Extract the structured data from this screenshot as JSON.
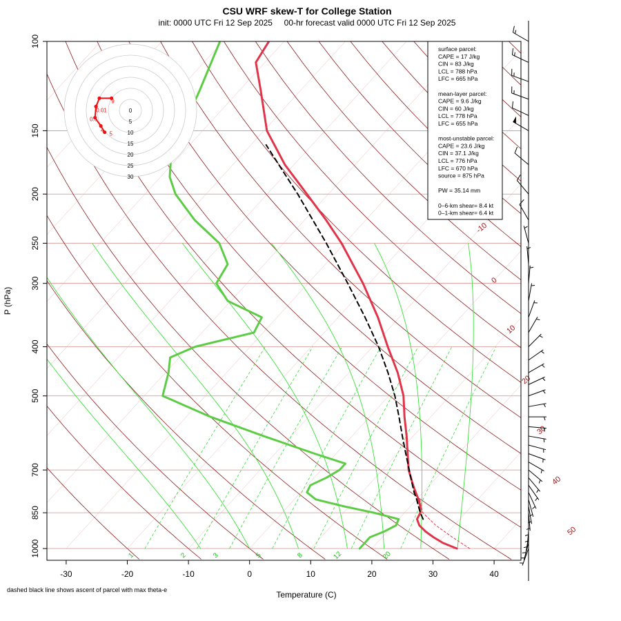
{
  "title": "CSU WRF skew-T for College Station",
  "subtitle": "init: 0000 UTC Fri 12 Sep 2025     00-hr forecast valid 0000 UTC Fri 12 Sep 2025",
  "footnote": "dashed black line shows ascent of parcel with max theta-e",
  "colors": {
    "temperature": "#e0344a",
    "dewpoint": "#5ccc44",
    "parcel": "#000000",
    "isotherm": "#8b1a1a",
    "mixing_ratio": "#33dd33",
    "isobar": "#d88c8c",
    "hodograph": "#ee1111"
  },
  "stats": {
    "lines": [
      "surface parcel:",
      "CAPE = 17 J/kg",
      "CIN = 83 J/kg",
      "LCL = 788 hPa",
      "LFC = 665 hPa",
      "",
      "mean-layer parcel:",
      "CAPE = 9.6 J/kg",
      "CIN = 60 J/kg",
      "LCL = 778 hPa",
      "LFC = 655 hPa",
      "",
      "most-unstable parcel:",
      "CAPE = 23.6 J/kg",
      "CIN = 37.1 J/kg",
      "LCL = 776 hPa",
      "LFC = 670 hPa",
      "source = 875 hPa",
      "",
      "PW =  35.14 mm",
      "",
      "0–6-km shear= 8.4 kt",
      "0–1-km shear= 6.4 kt"
    ]
  },
  "chart_data": {
    "type": "skew-t",
    "xlabel": "Temperature (C)",
    "ylabel": "P (hPa)",
    "x_ticks": [
      "-30",
      "-20",
      "-10",
      "0",
      "10",
      "20",
      "30",
      "40"
    ],
    "pressure_ticks": [
      "100",
      "150",
      "200",
      "250",
      "300",
      "400",
      "500",
      "700",
      "850",
      "1000"
    ],
    "isotherm_labels": [
      "-10",
      "0",
      "10",
      "20",
      "30",
      "40",
      "50"
    ],
    "mixing_ratio_labels": [
      "1",
      "2",
      "3",
      "5",
      "8",
      "12",
      "20"
    ],
    "series": [
      {
        "points": [
          [
            1000,
            33.9
          ],
          [
            975,
            30.8
          ],
          [
            950,
            28.4
          ],
          [
            925,
            26.2
          ],
          [
            900,
            24.3
          ],
          [
            875,
            23.0
          ],
          [
            850,
            22.6
          ],
          [
            825,
            21.6
          ],
          [
            800,
            20.3
          ],
          [
            775,
            18.8
          ],
          [
            750,
            17.3
          ],
          [
            700,
            14.3
          ],
          [
            650,
            11.7
          ],
          [
            600,
            8.9
          ],
          [
            550,
            5.7
          ],
          [
            500,
            2.4
          ],
          [
            450,
            -2.0
          ],
          [
            400,
            -7.5
          ],
          [
            350,
            -13.5
          ],
          [
            300,
            -21.0
          ],
          [
            250,
            -30.5
          ],
          [
            225,
            -36.5
          ],
          [
            200,
            -43.5
          ],
          [
            175,
            -51.5
          ],
          [
            150,
            -59.5
          ],
          [
            125,
            -66.5
          ],
          [
            110,
            -71.5
          ],
          [
            100,
            -72.5
          ]
        ]
      },
      {
        "points": [
          [
            1000,
            18.0
          ],
          [
            950,
            18.0
          ],
          [
            925,
            19.5
          ],
          [
            900,
            20.5
          ],
          [
            875,
            20.0
          ],
          [
            850,
            15.0
          ],
          [
            825,
            9.0
          ],
          [
            800,
            3.5
          ],
          [
            775,
            1.0
          ],
          [
            750,
            0.5
          ],
          [
            725,
            2.0
          ],
          [
            700,
            3.0
          ],
          [
            680,
            3.0
          ],
          [
            650,
            -3.5
          ],
          [
            600,
            -14.5
          ],
          [
            550,
            -26.0
          ],
          [
            500,
            -37.0
          ],
          [
            450,
            -39.5
          ],
          [
            420,
            -41.5
          ],
          [
            400,
            -39.0
          ],
          [
            375,
            -31.5
          ],
          [
            350,
            -32.5
          ],
          [
            325,
            -40.5
          ],
          [
            300,
            -45.0
          ],
          [
            275,
            -46.0
          ],
          [
            250,
            -50.5
          ],
          [
            225,
            -58.0
          ],
          [
            200,
            -65.0
          ],
          [
            185,
            -68.5
          ],
          [
            165,
            -72.0
          ],
          [
            145,
            -74.0
          ],
          [
            125,
            -76.5
          ],
          [
            100,
            -80.5
          ]
        ]
      },
      {
        "style": "dashed",
        "points": [
          [
            875,
            24.0
          ],
          [
            850,
            22.6
          ],
          [
            825,
            21.3
          ],
          [
            800,
            20.0
          ],
          [
            776,
            18.6
          ],
          [
            750,
            17.2
          ],
          [
            700,
            14.4
          ],
          [
            650,
            11.4
          ],
          [
            600,
            8.2
          ],
          [
            550,
            4.8
          ],
          [
            500,
            1.0
          ],
          [
            450,
            -3.6
          ],
          [
            400,
            -9.0
          ],
          [
            350,
            -15.6
          ],
          [
            300,
            -23.5
          ],
          [
            250,
            -33.0
          ],
          [
            200,
            -45.0
          ],
          [
            175,
            -52.5
          ],
          [
            160,
            -57.5
          ]
        ]
      },
      {
        "style": "dashed-thin",
        "points": [
          [
            1000,
            36.0
          ],
          [
            950,
            31.5
          ],
          [
            900,
            27.0
          ],
          [
            850,
            23.0
          ],
          [
            800,
            20.5
          ],
          [
            788,
            19.6
          ]
        ]
      }
    ],
    "hodograph": {
      "rings_kt": [
        "0",
        "5",
        "10",
        "15",
        "20",
        "25",
        "30"
      ],
      "point_labels": [
        "0.01",
        "0.5",
        "4",
        "5",
        "9"
      ],
      "points_kt": [
        [
          0.2,
          2.5
        ],
        [
          -2.3,
          2.5
        ],
        [
          -3.0,
          0.8
        ],
        [
          -3.2,
          -1.5
        ],
        [
          -2.0,
          -3.2
        ],
        [
          -1.2,
          -4.5
        ]
      ]
    },
    "wind_barbs": [
      {
        "p": 1000,
        "dir": 200,
        "kt": 5
      },
      {
        "p": 975,
        "dir": 195,
        "kt": 5
      },
      {
        "p": 950,
        "dir": 190,
        "kt": 5
      },
      {
        "p": 925,
        "dir": 185,
        "kt": 5
      },
      {
        "p": 900,
        "dir": 180,
        "kt": 5
      },
      {
        "p": 875,
        "dir": 180,
        "kt": 5
      },
      {
        "p": 850,
        "dir": 175,
        "kt": 5
      },
      {
        "p": 825,
        "dir": 170,
        "kt": 5
      },
      {
        "p": 800,
        "dir": 165,
        "kt": 5
      },
      {
        "p": 775,
        "dir": 155,
        "kt": 5
      },
      {
        "p": 750,
        "dir": 145,
        "kt": 5
      },
      {
        "p": 725,
        "dir": 140,
        "kt": 5
      },
      {
        "p": 700,
        "dir": 130,
        "kt": 5
      },
      {
        "p": 675,
        "dir": 120,
        "kt": 5
      },
      {
        "p": 650,
        "dir": 110,
        "kt": 5
      },
      {
        "p": 625,
        "dir": 105,
        "kt": 5
      },
      {
        "p": 600,
        "dir": 100,
        "kt": 5
      },
      {
        "p": 575,
        "dir": 95,
        "kt": 5
      },
      {
        "p": 550,
        "dir": 90,
        "kt": 5
      },
      {
        "p": 525,
        "dir": 80,
        "kt": 5
      },
      {
        "p": 500,
        "dir": 70,
        "kt": 5
      },
      {
        "p": 475,
        "dir": 65,
        "kt": 5
      },
      {
        "p": 450,
        "dir": 60,
        "kt": 5
      },
      {
        "p": 425,
        "dir": 55,
        "kt": 5
      },
      {
        "p": 400,
        "dir": 45,
        "kt": 5
      },
      {
        "p": 375,
        "dir": 30,
        "kt": 5
      },
      {
        "p": 350,
        "dir": 20,
        "kt": 5
      },
      {
        "p": 325,
        "dir": 10,
        "kt": 5
      },
      {
        "p": 300,
        "dir": 5,
        "kt": 5
      },
      {
        "p": 275,
        "dir": 355,
        "kt": 5
      },
      {
        "p": 250,
        "dir": 345,
        "kt": 5
      },
      {
        "p": 225,
        "dir": 330,
        "kt": 10
      },
      {
        "p": 200,
        "dir": 320,
        "kt": 10
      },
      {
        "p": 175,
        "dir": 310,
        "kt": 10
      },
      {
        "p": 150,
        "dir": 300,
        "kt": 50
      },
      {
        "p": 140,
        "dir": 295,
        "kt": 10
      },
      {
        "p": 130,
        "dir": 290,
        "kt": 15
      },
      {
        "p": 120,
        "dir": 290,
        "kt": 15
      },
      {
        "p": 110,
        "dir": 295,
        "kt": 15
      },
      {
        "p": 100,
        "dir": 300,
        "kt": 15
      }
    ]
  }
}
